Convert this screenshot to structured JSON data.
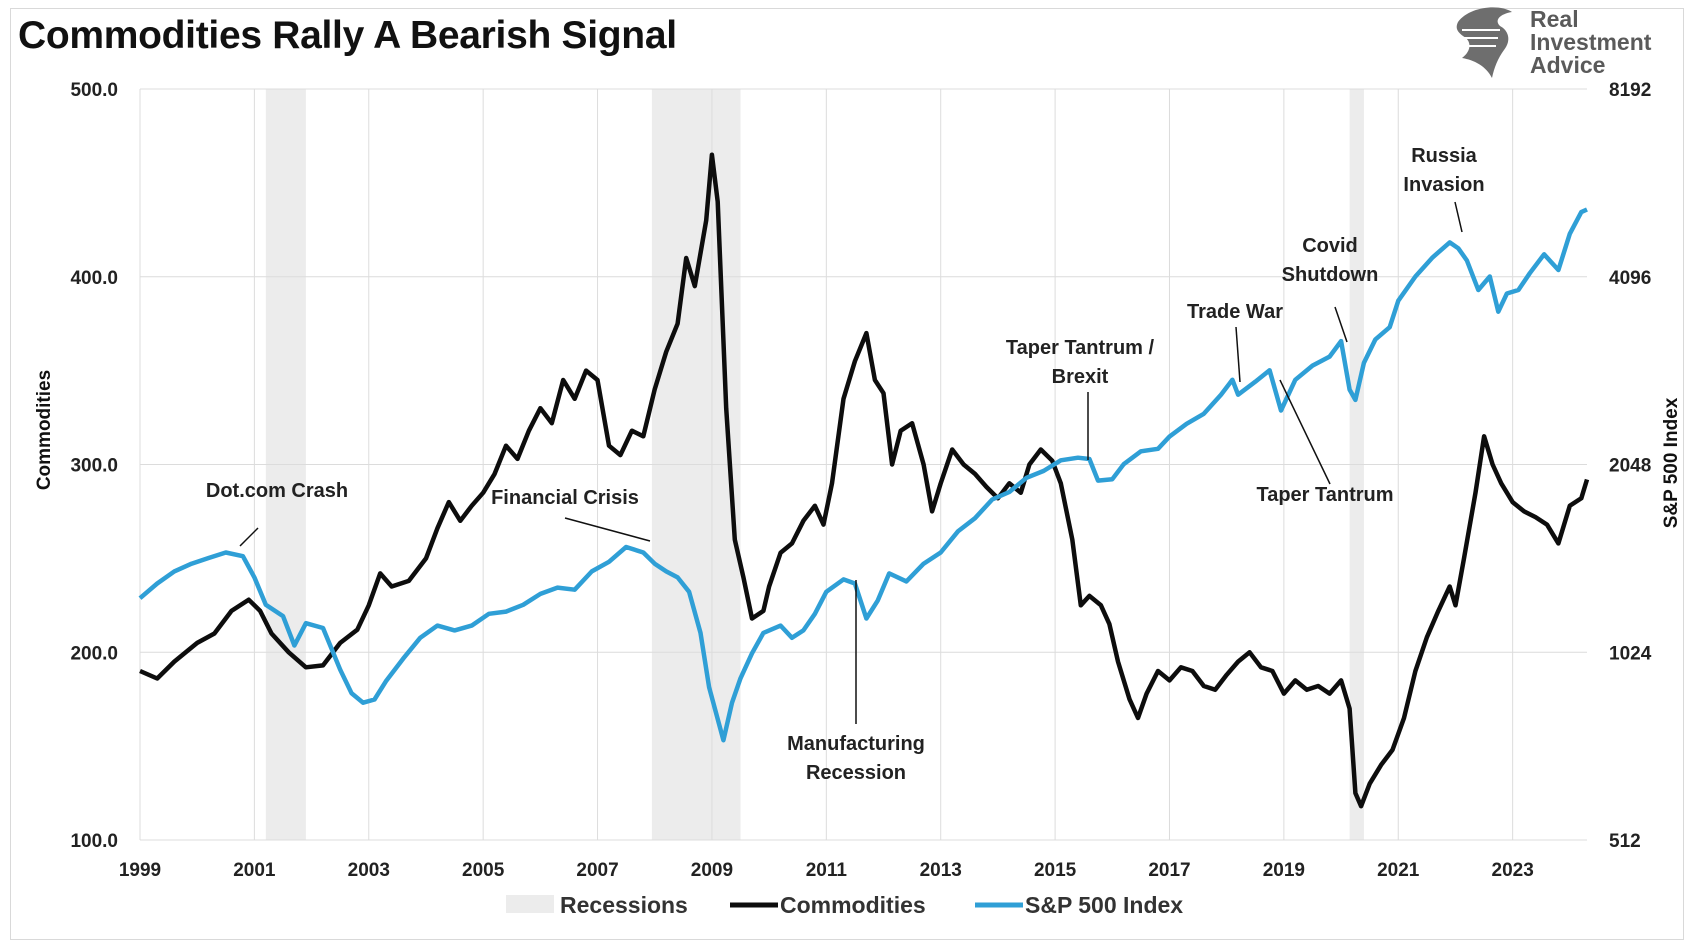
{
  "title": "Commodities Rally A Bearish Signal",
  "logo": {
    "line1": "Real",
    "line2": "Investment",
    "line3": "Advice",
    "icon": "eagle-icon"
  },
  "colors": {
    "commodities": "#0d0d0d",
    "sp500": "#2f9fd6",
    "recession": "#ececec",
    "grid": "#dcdcdc"
  },
  "chart_data": {
    "type": "line",
    "title": "Commodities Rally A Bearish Signal",
    "x_ticks": [
      "1999",
      "2001",
      "2003",
      "2005",
      "2007",
      "2009",
      "2011",
      "2013",
      "2015",
      "2017",
      "2019",
      "2021",
      "2023"
    ],
    "x_range": [
      1999,
      2024.3
    ],
    "y_left": {
      "label": "Commodities",
      "range": [
        100,
        500
      ],
      "ticks": [
        "100.0",
        "200.0",
        "300.0",
        "400.0",
        "500.0"
      ]
    },
    "y_right": {
      "label": "S&P 500 Index",
      "scale": "log2",
      "range": [
        512,
        8192
      ],
      "ticks": [
        "512",
        "1024",
        "2048",
        "4096",
        "8192"
      ]
    },
    "grid": true,
    "legend_position": "bottom",
    "legend": [
      "Recessions",
      "Commodities",
      "S&P 500 Index"
    ],
    "recessions": [
      [
        2001.2,
        2001.9
      ],
      [
        2007.95,
        2009.5
      ],
      [
        2020.15,
        2020.4
      ]
    ],
    "series": [
      {
        "name": "Commodities",
        "axis": "left",
        "points": [
          [
            1999.0,
            190
          ],
          [
            1999.3,
            186
          ],
          [
            1999.6,
            195
          ],
          [
            2000.0,
            205
          ],
          [
            2000.3,
            210
          ],
          [
            2000.6,
            222
          ],
          [
            2000.9,
            228
          ],
          [
            2001.1,
            222
          ],
          [
            2001.3,
            210
          ],
          [
            2001.6,
            200
          ],
          [
            2001.9,
            192
          ],
          [
            2002.2,
            193
          ],
          [
            2002.5,
            205
          ],
          [
            2002.8,
            212
          ],
          [
            2003.0,
            225
          ],
          [
            2003.2,
            242
          ],
          [
            2003.4,
            235
          ],
          [
            2003.7,
            238
          ],
          [
            2004.0,
            250
          ],
          [
            2004.2,
            266
          ],
          [
            2004.4,
            280
          ],
          [
            2004.6,
            270
          ],
          [
            2004.8,
            278
          ],
          [
            2005.0,
            285
          ],
          [
            2005.2,
            295
          ],
          [
            2005.4,
            310
          ],
          [
            2005.6,
            303
          ],
          [
            2005.8,
            318
          ],
          [
            2006.0,
            330
          ],
          [
            2006.2,
            322
          ],
          [
            2006.4,
            345
          ],
          [
            2006.6,
            335
          ],
          [
            2006.8,
            350
          ],
          [
            2007.0,
            345
          ],
          [
            2007.2,
            310
          ],
          [
            2007.4,
            305
          ],
          [
            2007.6,
            318
          ],
          [
            2007.8,
            315
          ],
          [
            2008.0,
            340
          ],
          [
            2008.2,
            360
          ],
          [
            2008.4,
            375
          ],
          [
            2008.55,
            410
          ],
          [
            2008.7,
            395
          ],
          [
            2008.9,
            430
          ],
          [
            2009.0,
            465
          ],
          [
            2009.1,
            440
          ],
          [
            2009.25,
            330
          ],
          [
            2009.4,
            260
          ],
          [
            2009.55,
            240
          ],
          [
            2009.7,
            218
          ],
          [
            2009.9,
            222
          ],
          [
            2010.0,
            235
          ],
          [
            2010.2,
            253
          ],
          [
            2010.4,
            258
          ],
          [
            2010.6,
            270
          ],
          [
            2010.8,
            278
          ],
          [
            2010.95,
            268
          ],
          [
            2011.1,
            290
          ],
          [
            2011.3,
            335
          ],
          [
            2011.5,
            355
          ],
          [
            2011.7,
            370
          ],
          [
            2011.85,
            345
          ],
          [
            2012.0,
            338
          ],
          [
            2012.15,
            300
          ],
          [
            2012.3,
            318
          ],
          [
            2012.5,
            322
          ],
          [
            2012.7,
            300
          ],
          [
            2012.85,
            275
          ],
          [
            2013.0,
            290
          ],
          [
            2013.2,
            308
          ],
          [
            2013.4,
            300
          ],
          [
            2013.6,
            295
          ],
          [
            2013.8,
            288
          ],
          [
            2014.0,
            282
          ],
          [
            2014.2,
            290
          ],
          [
            2014.4,
            285
          ],
          [
            2014.55,
            300
          ],
          [
            2014.75,
            308
          ],
          [
            2014.95,
            302
          ],
          [
            2015.1,
            290
          ],
          [
            2015.3,
            260
          ],
          [
            2015.45,
            225
          ],
          [
            2015.6,
            230
          ],
          [
            2015.8,
            225
          ],
          [
            2015.95,
            215
          ],
          [
            2016.1,
            195
          ],
          [
            2016.3,
            175
          ],
          [
            2016.45,
            165
          ],
          [
            2016.6,
            178
          ],
          [
            2016.8,
            190
          ],
          [
            2017.0,
            185
          ],
          [
            2017.2,
            192
          ],
          [
            2017.4,
            190
          ],
          [
            2017.6,
            182
          ],
          [
            2017.8,
            180
          ],
          [
            2018.0,
            188
          ],
          [
            2018.2,
            195
          ],
          [
            2018.4,
            200
          ],
          [
            2018.6,
            192
          ],
          [
            2018.8,
            190
          ],
          [
            2019.0,
            178
          ],
          [
            2019.2,
            185
          ],
          [
            2019.4,
            180
          ],
          [
            2019.6,
            182
          ],
          [
            2019.8,
            178
          ],
          [
            2020.0,
            185
          ],
          [
            2020.15,
            170
          ],
          [
            2020.25,
            125
          ],
          [
            2020.35,
            118
          ],
          [
            2020.5,
            130
          ],
          [
            2020.7,
            140
          ],
          [
            2020.9,
            148
          ],
          [
            2021.1,
            165
          ],
          [
            2021.3,
            190
          ],
          [
            2021.5,
            208
          ],
          [
            2021.7,
            222
          ],
          [
            2021.9,
            235
          ],
          [
            2022.0,
            225
          ],
          [
            2022.15,
            250
          ],
          [
            2022.35,
            285
          ],
          [
            2022.5,
            315
          ],
          [
            2022.65,
            300
          ],
          [
            2022.8,
            290
          ],
          [
            2023.0,
            280
          ],
          [
            2023.2,
            275
          ],
          [
            2023.4,
            272
          ],
          [
            2023.6,
            268
          ],
          [
            2023.8,
            258
          ],
          [
            2024.0,
            278
          ],
          [
            2024.2,
            282
          ],
          [
            2024.3,
            292
          ]
        ]
      },
      {
        "name": "S&P 500 Index",
        "axis": "right",
        "points": [
          [
            1999.0,
            1250
          ],
          [
            1999.3,
            1320
          ],
          [
            1999.6,
            1380
          ],
          [
            1999.9,
            1420
          ],
          [
            2000.2,
            1450
          ],
          [
            2000.5,
            1480
          ],
          [
            2000.8,
            1460
          ],
          [
            2001.0,
            1350
          ],
          [
            2001.2,
            1220
          ],
          [
            2001.5,
            1170
          ],
          [
            2001.7,
            1050
          ],
          [
            2001.9,
            1140
          ],
          [
            2002.2,
            1120
          ],
          [
            2002.5,
            960
          ],
          [
            2002.7,
            880
          ],
          [
            2002.9,
            850
          ],
          [
            2003.1,
            860
          ],
          [
            2003.3,
            920
          ],
          [
            2003.6,
            1000
          ],
          [
            2003.9,
            1080
          ],
          [
            2004.2,
            1130
          ],
          [
            2004.5,
            1110
          ],
          [
            2004.8,
            1130
          ],
          [
            2005.1,
            1180
          ],
          [
            2005.4,
            1190
          ],
          [
            2005.7,
            1220
          ],
          [
            2006.0,
            1270
          ],
          [
            2006.3,
            1300
          ],
          [
            2006.6,
            1290
          ],
          [
            2006.9,
            1380
          ],
          [
            2007.2,
            1430
          ],
          [
            2007.5,
            1510
          ],
          [
            2007.8,
            1480
          ],
          [
            2008.0,
            1420
          ],
          [
            2008.2,
            1380
          ],
          [
            2008.4,
            1350
          ],
          [
            2008.6,
            1280
          ],
          [
            2008.8,
            1100
          ],
          [
            2008.95,
            900
          ],
          [
            2009.1,
            800
          ],
          [
            2009.2,
            740
          ],
          [
            2009.35,
            850
          ],
          [
            2009.5,
            930
          ],
          [
            2009.7,
            1020
          ],
          [
            2009.9,
            1100
          ],
          [
            2010.2,
            1130
          ],
          [
            2010.4,
            1080
          ],
          [
            2010.6,
            1110
          ],
          [
            2010.8,
            1180
          ],
          [
            2011.0,
            1280
          ],
          [
            2011.3,
            1340
          ],
          [
            2011.5,
            1320
          ],
          [
            2011.7,
            1160
          ],
          [
            2011.9,
            1240
          ],
          [
            2012.1,
            1370
          ],
          [
            2012.4,
            1330
          ],
          [
            2012.7,
            1420
          ],
          [
            2013.0,
            1480
          ],
          [
            2013.3,
            1600
          ],
          [
            2013.6,
            1680
          ],
          [
            2013.9,
            1800
          ],
          [
            2014.2,
            1850
          ],
          [
            2014.5,
            1950
          ],
          [
            2014.8,
            2000
          ],
          [
            2015.1,
            2080
          ],
          [
            2015.4,
            2100
          ],
          [
            2015.6,
            2090
          ],
          [
            2015.75,
            1930
          ],
          [
            2016.0,
            1940
          ],
          [
            2016.2,
            2050
          ],
          [
            2016.5,
            2150
          ],
          [
            2016.8,
            2170
          ],
          [
            2017.0,
            2270
          ],
          [
            2017.3,
            2380
          ],
          [
            2017.6,
            2470
          ],
          [
            2017.9,
            2650
          ],
          [
            2018.1,
            2800
          ],
          [
            2018.2,
            2650
          ],
          [
            2018.5,
            2780
          ],
          [
            2018.75,
            2900
          ],
          [
            2018.95,
            2500
          ],
          [
            2019.2,
            2800
          ],
          [
            2019.5,
            2950
          ],
          [
            2019.8,
            3050
          ],
          [
            2020.0,
            3230
          ],
          [
            2020.15,
            2700
          ],
          [
            2020.25,
            2600
          ],
          [
            2020.4,
            2980
          ],
          [
            2020.6,
            3250
          ],
          [
            2020.85,
            3400
          ],
          [
            2021.0,
            3750
          ],
          [
            2021.3,
            4100
          ],
          [
            2021.6,
            4400
          ],
          [
            2021.9,
            4650
          ],
          [
            2022.05,
            4550
          ],
          [
            2022.2,
            4350
          ],
          [
            2022.4,
            3900
          ],
          [
            2022.6,
            4100
          ],
          [
            2022.75,
            3600
          ],
          [
            2022.9,
            3850
          ],
          [
            2023.1,
            3900
          ],
          [
            2023.3,
            4150
          ],
          [
            2023.55,
            4450
          ],
          [
            2023.8,
            4200
          ],
          [
            2024.0,
            4800
          ],
          [
            2024.2,
            5200
          ],
          [
            2024.3,
            5250
          ]
        ]
      }
    ],
    "annotations": [
      {
        "lines": [
          "Dot.com Crash"
        ]
      },
      {
        "lines": [
          "Financial Crisis"
        ]
      },
      {
        "lines": [
          "Manufacturing",
          "Recession"
        ]
      },
      {
        "lines": [
          "Taper Tantrum /",
          "Brexit"
        ]
      },
      {
        "lines": [
          "Trade War"
        ]
      },
      {
        "lines": [
          "Covid",
          "Shutdown"
        ]
      },
      {
        "lines": [
          "Russia",
          "Invasion"
        ]
      },
      {
        "lines": [
          "Taper Tantrum"
        ]
      }
    ]
  }
}
